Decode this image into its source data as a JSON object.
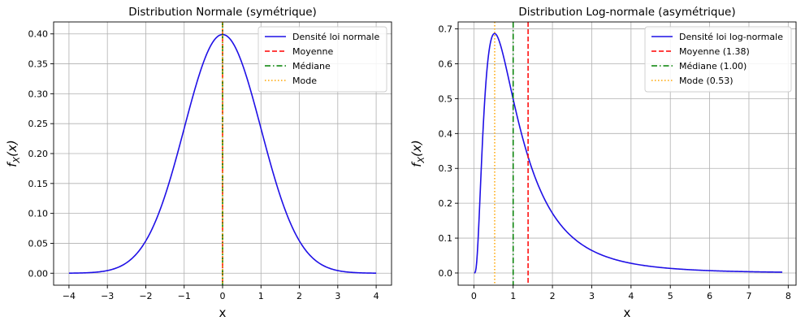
{
  "chart_data": [
    {
      "type": "line",
      "title": "Distribution Normale (symétrique)",
      "xlabel": "x",
      "ylabel": "f_X(x)",
      "xlim": [
        -4.4,
        4.4
      ],
      "ylim": [
        -0.02,
        0.42
      ],
      "xticks": [
        -4,
        -3,
        -2,
        -1,
        0,
        1,
        2,
        3,
        4
      ],
      "yticks": [
        0.0,
        0.05,
        0.1,
        0.15,
        0.2,
        0.25,
        0.3,
        0.35,
        0.4
      ],
      "ytick_labels": [
        "0.00",
        "0.05",
        "0.10",
        "0.15",
        "0.20",
        "0.25",
        "0.30",
        "0.35",
        "0.40"
      ],
      "grid": true,
      "legend_position": "top-right",
      "density": {
        "mu": 0,
        "sigma": 1,
        "x_start": -4,
        "x_end": 4
      },
      "series": [
        {
          "name": "Densité loi normale",
          "kind": "curve",
          "color": "#1f10e6",
          "style": "solid",
          "x": [
            -4,
            -3,
            -2.5,
            -2,
            -1.5,
            -1,
            -0.5,
            0,
            0.5,
            1,
            1.5,
            2,
            2.5,
            3,
            4
          ],
          "y": [
            0.0001,
            0.0044,
            0.0175,
            0.054,
            0.1295,
            0.242,
            0.3521,
            0.3989,
            0.3521,
            0.242,
            0.1295,
            0.054,
            0.0175,
            0.0044,
            0.0001
          ]
        },
        {
          "name": "Moyenne",
          "kind": "vline",
          "x": 0,
          "color": "#ff0000",
          "style": "dashed"
        },
        {
          "name": "Médiane",
          "kind": "vline",
          "x": 0,
          "color": "#008000",
          "style": "dashdot"
        },
        {
          "name": "Mode",
          "kind": "vline",
          "x": 0,
          "color": "#ffa500",
          "style": "dotted"
        }
      ]
    },
    {
      "type": "line",
      "title": "Distribution Log-normale (asymétrique)",
      "xlabel": "x",
      "ylabel": "f_X(x)",
      "xlim": [
        -0.4,
        8.2
      ],
      "ylim": [
        -0.035,
        0.72
      ],
      "xticks": [
        0,
        1,
        2,
        3,
        4,
        5,
        6,
        7,
        8
      ],
      "yticks": [
        0.0,
        0.1,
        0.2,
        0.3,
        0.4,
        0.5,
        0.6,
        0.7
      ],
      "ytick_labels": [
        "0.0",
        "0.1",
        "0.2",
        "0.3",
        "0.4",
        "0.5",
        "0.6",
        "0.7"
      ],
      "grid": true,
      "legend_position": "top-right",
      "density": {
        "mu": 0,
        "sigma": 0.8,
        "x_start": 0.01,
        "x_end": 7.85
      },
      "series": [
        {
          "name": "Densité loi log-normale",
          "kind": "curve",
          "color": "#1f10e6",
          "style": "solid",
          "x": [
            0.05,
            0.2,
            0.35,
            0.53,
            0.75,
            1,
            1.38,
            2,
            3,
            4,
            5,
            6,
            7,
            7.85
          ],
          "y": [
            0.0,
            0.27,
            0.59,
            0.687,
            0.6,
            0.499,
            0.33,
            0.173,
            0.067,
            0.029,
            0.014,
            0.008,
            0.005,
            0.003
          ]
        },
        {
          "name": "Moyenne (1.38)",
          "kind": "vline",
          "x": 1.38,
          "color": "#ff0000",
          "style": "dashed"
        },
        {
          "name": "Médiane (1.00)",
          "kind": "vline",
          "x": 1.0,
          "color": "#008000",
          "style": "dashdot"
        },
        {
          "name": "Mode (0.53)",
          "kind": "vline",
          "x": 0.53,
          "color": "#ffa500",
          "style": "dotted"
        }
      ]
    }
  ]
}
